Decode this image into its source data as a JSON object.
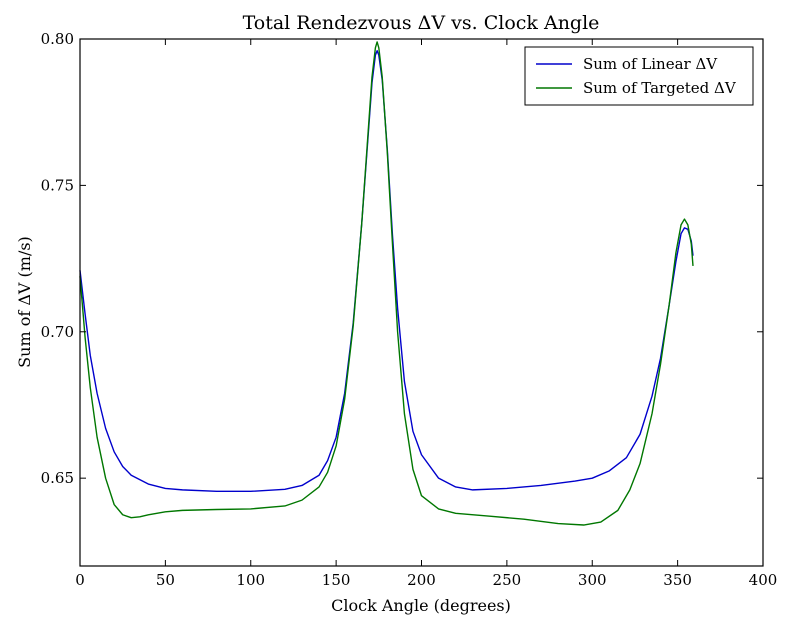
{
  "chart_data": {
    "type": "line",
    "title": "Total Rendezvous ΔV vs. Clock Angle",
    "xlabel": "Clock Angle (degrees)",
    "ylabel": "Sum of ΔV (m/s)",
    "xlim": [
      0,
      400
    ],
    "ylim": [
      0.62,
      0.8
    ],
    "xticks": [
      0,
      50,
      100,
      150,
      200,
      250,
      300,
      350,
      400
    ],
    "xtick_labels": [
      "0",
      "50",
      "100",
      "150",
      "200",
      "250",
      "300",
      "350",
      "400"
    ],
    "yticks": [
      0.65,
      0.7,
      0.75,
      0.8
    ],
    "ytick_labels": [
      "0.65",
      "0.70",
      "0.75",
      "0.80"
    ],
    "grid": false,
    "legend_position": "top-right",
    "series": [
      {
        "name": "Sum of Linear ΔV",
        "color": "#0000cc",
        "points": [
          [
            0,
            0.721
          ],
          [
            3,
            0.706
          ],
          [
            6,
            0.692
          ],
          [
            10,
            0.679
          ],
          [
            15,
            0.667
          ],
          [
            20,
            0.659
          ],
          [
            25,
            0.654
          ],
          [
            30,
            0.651
          ],
          [
            40,
            0.648
          ],
          [
            50,
            0.6465
          ],
          [
            60,
            0.646
          ],
          [
            80,
            0.6455
          ],
          [
            100,
            0.6455
          ],
          [
            120,
            0.6462
          ],
          [
            130,
            0.6475
          ],
          [
            140,
            0.651
          ],
          [
            145,
            0.656
          ],
          [
            150,
            0.664
          ],
          [
            155,
            0.679
          ],
          [
            160,
            0.703
          ],
          [
            165,
            0.737
          ],
          [
            168,
            0.761
          ],
          [
            171,
            0.785
          ],
          [
            173,
            0.7945
          ],
          [
            174,
            0.796
          ],
          [
            175,
            0.7945
          ],
          [
            177,
            0.786
          ],
          [
            180,
            0.762
          ],
          [
            183,
            0.733
          ],
          [
            186,
            0.708
          ],
          [
            190,
            0.683
          ],
          [
            195,
            0.666
          ],
          [
            200,
            0.658
          ],
          [
            210,
            0.65
          ],
          [
            220,
            0.647
          ],
          [
            230,
            0.646
          ],
          [
            250,
            0.6465
          ],
          [
            270,
            0.6475
          ],
          [
            290,
            0.649
          ],
          [
            300,
            0.65
          ],
          [
            310,
            0.6525
          ],
          [
            320,
            0.657
          ],
          [
            328,
            0.665
          ],
          [
            335,
            0.678
          ],
          [
            340,
            0.691
          ],
          [
            345,
            0.709
          ],
          [
            349,
            0.724
          ],
          [
            352,
            0.7335
          ],
          [
            354,
            0.7355
          ],
          [
            356,
            0.735
          ],
          [
            358,
            0.731
          ],
          [
            359,
            0.726
          ]
        ]
      },
      {
        "name": "Sum of Targeted ΔV",
        "color": "#007700",
        "points": [
          [
            0,
            0.719
          ],
          [
            3,
            0.698
          ],
          [
            6,
            0.681
          ],
          [
            10,
            0.664
          ],
          [
            15,
            0.65
          ],
          [
            20,
            0.641
          ],
          [
            25,
            0.6375
          ],
          [
            30,
            0.6365
          ],
          [
            35,
            0.6368
          ],
          [
            40,
            0.6375
          ],
          [
            50,
            0.6385
          ],
          [
            60,
            0.639
          ],
          [
            80,
            0.6393
          ],
          [
            100,
            0.6395
          ],
          [
            120,
            0.6405
          ],
          [
            130,
            0.6425
          ],
          [
            140,
            0.647
          ],
          [
            145,
            0.652
          ],
          [
            150,
            0.661
          ],
          [
            155,
            0.677
          ],
          [
            160,
            0.702
          ],
          [
            165,
            0.737
          ],
          [
            168,
            0.762
          ],
          [
            171,
            0.787
          ],
          [
            173,
            0.797
          ],
          [
            174,
            0.799
          ],
          [
            175,
            0.797
          ],
          [
            177,
            0.787
          ],
          [
            180,
            0.761
          ],
          [
            183,
            0.73
          ],
          [
            186,
            0.7
          ],
          [
            190,
            0.672
          ],
          [
            195,
            0.653
          ],
          [
            200,
            0.644
          ],
          [
            210,
            0.6395
          ],
          [
            220,
            0.638
          ],
          [
            240,
            0.637
          ],
          [
            260,
            0.636
          ],
          [
            280,
            0.6345
          ],
          [
            295,
            0.634
          ],
          [
            305,
            0.635
          ],
          [
            315,
            0.639
          ],
          [
            322,
            0.646
          ],
          [
            328,
            0.655
          ],
          [
            335,
            0.672
          ],
          [
            340,
            0.689
          ],
          [
            345,
            0.709
          ],
          [
            349,
            0.727
          ],
          [
            352,
            0.7365
          ],
          [
            354,
            0.7385
          ],
          [
            356,
            0.7365
          ],
          [
            358,
            0.73
          ],
          [
            359,
            0.7225
          ]
        ]
      }
    ]
  }
}
